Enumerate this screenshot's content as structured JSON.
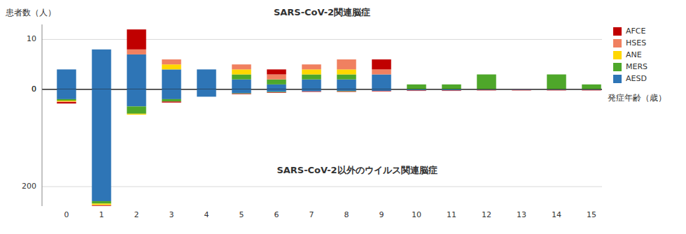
{
  "chart_data": [
    {
      "type": "bar",
      "stacked": true,
      "title": "SARS-CoV-2関連脳症",
      "ylabel": "患者数（人）",
      "categories": [
        0,
        1,
        2,
        3,
        4,
        5,
        6,
        7,
        8,
        9,
        10,
        11,
        12,
        13,
        14,
        15
      ],
      "series": [
        {
          "name": "AESD",
          "color": "#2E75B6",
          "values": [
            4,
            8,
            7,
            4,
            4,
            2,
            1,
            2,
            2,
            3,
            0,
            0,
            0,
            0,
            0,
            0
          ]
        },
        {
          "name": "MERS",
          "color": "#4EA72A",
          "values": [
            0,
            0,
            0,
            0,
            0,
            1,
            1,
            1,
            1,
            0,
            1,
            1,
            3,
            0,
            3,
            1
          ]
        },
        {
          "name": "ANE",
          "color": "#FFD700",
          "values": [
            0,
            0,
            0,
            1,
            0,
            1,
            0,
            1,
            1,
            0,
            0,
            0,
            0,
            0,
            0,
            0
          ]
        },
        {
          "name": "HSES",
          "color": "#F08060",
          "values": [
            0,
            0,
            1,
            1,
            0,
            1,
            1,
            1,
            2,
            1,
            0,
            0,
            0,
            0,
            0,
            0
          ]
        },
        {
          "name": "AFCE",
          "color": "#C00000",
          "values": [
            0,
            0,
            4,
            0,
            0,
            0,
            1,
            0,
            0,
            2,
            0,
            0,
            0,
            0,
            0,
            0
          ]
        }
      ],
      "ylim": [
        0,
        13
      ],
      "yticks": [
        0,
        10
      ],
      "grid": true,
      "legend": "right",
      "tick_labels": "y"
    },
    {
      "type": "bar",
      "stacked": true,
      "title": "SARS-CoV-2以外のウイルス関連脳症",
      "xlabel": "発症年齢（歳）",
      "categories": [
        0,
        1,
        2,
        3,
        4,
        5,
        6,
        7,
        8,
        9,
        10,
        11,
        12,
        13,
        14,
        15
      ],
      "series": [
        {
          "name": "AESD",
          "color": "#2E75B6",
          "values": [
            20,
            230,
            35,
            20,
            15,
            8,
            5,
            4,
            3,
            3,
            2,
            2,
            1,
            1,
            1,
            1
          ]
        },
        {
          "name": "MERS",
          "color": "#4EA72A",
          "values": [
            3,
            5,
            15,
            5,
            0,
            1,
            1,
            0,
            1,
            0,
            0,
            0,
            0,
            0,
            0,
            0
          ]
        },
        {
          "name": "ANE",
          "color": "#FFD700",
          "values": [
            2,
            3,
            2,
            0,
            0,
            0,
            0,
            0,
            0,
            0,
            0,
            0,
            0,
            0,
            0,
            0
          ]
        },
        {
          "name": "HSES",
          "color": "#F08060",
          "values": [
            1,
            1,
            0,
            0,
            0,
            0,
            0,
            0,
            0,
            0,
            0,
            0,
            0,
            0,
            0,
            0
          ]
        },
        {
          "name": "AFCE",
          "color": "#C00000",
          "values": [
            3,
            1,
            0,
            2,
            0,
            1,
            1,
            1,
            1,
            1,
            1,
            1,
            1,
            1,
            1,
            1
          ]
        }
      ],
      "ylim": [
        240,
        0
      ],
      "yticks": [
        0,
        200
      ],
      "grid": true
    }
  ]
}
